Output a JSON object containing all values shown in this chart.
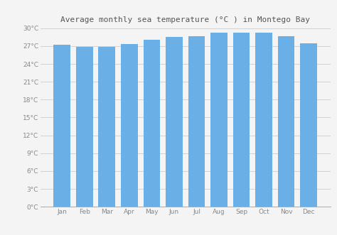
{
  "months": [
    "Jan",
    "Feb",
    "Mar",
    "Apr",
    "May",
    "Jun",
    "Jul",
    "Aug",
    "Sep",
    "Oct",
    "Nov",
    "Dec"
  ],
  "temperatures": [
    27.2,
    26.9,
    26.9,
    27.3,
    28.0,
    28.5,
    28.7,
    29.2,
    29.3,
    29.2,
    28.6,
    27.5
  ],
  "bar_color": "#6aafe6",
  "background_color": "#f4f4f4",
  "grid_color": "#cccccc",
  "title": "Average monthly sea temperature (°C ) in Montego Bay",
  "title_fontsize": 8.0,
  "title_color": "#555555",
  "tick_label_color": "#888888",
  "tick_fontsize": 6.5,
  "ylim": [
    0,
    30
  ],
  "ytick_step": 3,
  "bar_width": 0.75
}
